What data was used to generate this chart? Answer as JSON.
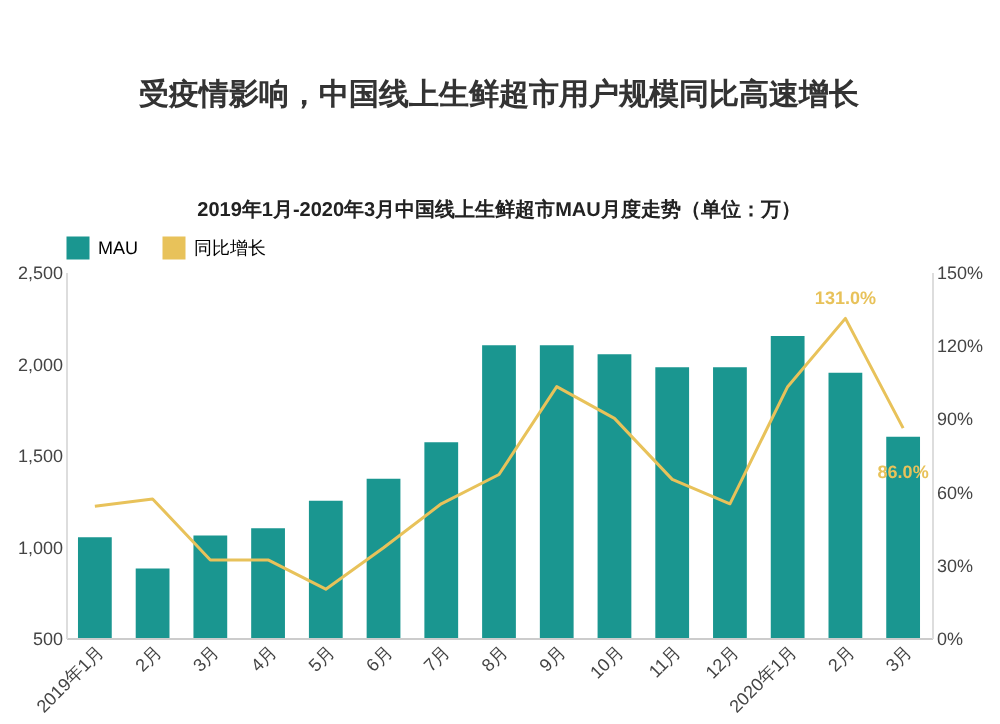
{
  "chart_data": {
    "type": "bar",
    "title": "受疫情影响，中国线上生鲜超市用户规模同比高速增长",
    "subtitle": "2019年1月-2020年3月中国线上生鲜超市MAU月度走势（单位：万）",
    "categories": [
      "2019年1月",
      "2月",
      "3月",
      "4月",
      "5月",
      "6月",
      "7月",
      "8月",
      "9月",
      "10月",
      "11月",
      "12月",
      "2020年1月",
      "2月",
      "3月"
    ],
    "series": [
      {
        "name": "MAU",
        "color": "#1a9690",
        "values": [
          1050,
          880,
          1060,
          1100,
          1250,
          1370,
          1570,
          2100,
          2100,
          2050,
          1980,
          1980,
          2150,
          1950,
          1600
        ]
      },
      {
        "name": "同比增长",
        "type": "line",
        "axis": "y2",
        "color": "#e8c25a",
        "values": [
          54,
          57,
          32,
          32,
          20,
          37,
          55,
          67,
          103,
          90,
          65,
          55,
          103,
          131,
          86
        ],
        "value_labels": [
          null,
          null,
          null,
          null,
          null,
          null,
          null,
          null,
          null,
          null,
          null,
          null,
          null,
          "131.0%",
          "86.0%"
        ]
      }
    ],
    "ylim": [
      500,
      2500
    ],
    "yticks": [
      {
        "value": 500,
        "label": "500"
      },
      {
        "value": 1000,
        "label": "1,000"
      },
      {
        "value": 1500,
        "label": "1,500"
      },
      {
        "value": 2000,
        "label": "2,000"
      },
      {
        "value": 2500,
        "label": "2,500"
      }
    ],
    "y2lim": [
      0,
      150
    ],
    "y2ticks": [
      {
        "value": 0,
        "label": "0%"
      },
      {
        "value": 30,
        "label": "30%"
      },
      {
        "value": 60,
        "label": "60%"
      },
      {
        "value": 90,
        "label": "90%"
      },
      {
        "value": 120,
        "label": "120%"
      },
      {
        "value": 150,
        "label": "150%"
      }
    ],
    "legend": "top",
    "grid": false
  }
}
